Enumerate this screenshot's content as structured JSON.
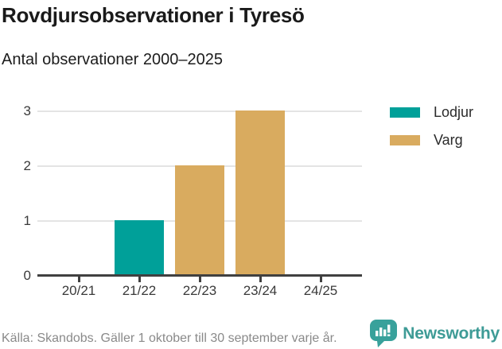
{
  "header": {
    "title": "Rovdjursobservationer i Tyresö",
    "subtitle": "Antal observationer 2000–2025"
  },
  "chart_data": {
    "type": "bar",
    "categories": [
      "20/21",
      "21/22",
      "22/23",
      "23/24",
      "24/25"
    ],
    "series": [
      {
        "name": "Lodjur",
        "color": "#00a099",
        "values": [
          0,
          1,
          0,
          0,
          0
        ]
      },
      {
        "name": "Varg",
        "color": "#d9ab5f",
        "values": [
          0,
          0,
          2,
          3,
          0
        ]
      }
    ],
    "title": "Rovdjursobservationer i Tyresö",
    "subtitle": "Antal observationer 2000–2025",
    "xlabel": "",
    "ylabel": "",
    "ylim": [
      0,
      3
    ],
    "yticks": [
      0,
      1,
      2,
      3
    ],
    "grid": true,
    "legend_position": "right-top",
    "bar_orientation": "vertical",
    "stacked": true
  },
  "footer": {
    "source": "Källa: Skandobs. Gäller 1 oktober till 30 september varje år.",
    "brand": "Newsworthy"
  },
  "colors": {
    "lodjur": "#00a099",
    "varg": "#d9ab5f",
    "axis_line": "#404040",
    "gridline": "#e4e4e4",
    "axis_text": "#3a3a3a",
    "title_text": "#1a1a1a",
    "source_text": "#8a8a8a",
    "brand_teal": "#3e9b96",
    "logo_bubble": "#38a19b"
  }
}
